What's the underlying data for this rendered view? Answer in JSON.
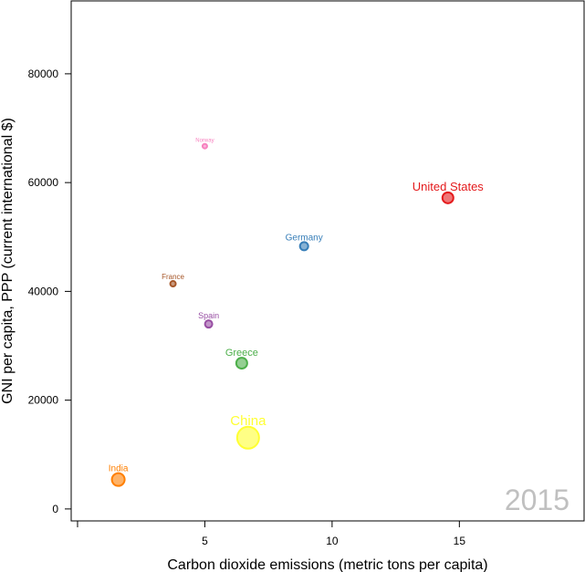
{
  "chart_data": {
    "type": "scatter",
    "title": "",
    "year_label": "2015",
    "xlabel": "Carbon dioxide emissions (metric tons per capita)",
    "ylabel": "GNI per capita, PPP (current international $)",
    "xlim": [
      -0.25,
      19.9
    ],
    "ylim": [
      -2200,
      93400
    ],
    "xticks": [
      0,
      5,
      10,
      15
    ],
    "xtick_labels": [
      "",
      "5",
      "10",
      "15"
    ],
    "yticks": [
      0,
      20000,
      40000,
      60000,
      80000
    ],
    "ytick_labels": [
      "0",
      "20000",
      "40000",
      "60000",
      "80000"
    ],
    "grid": false,
    "points": [
      {
        "label": "China",
        "x": 6.7,
        "y": 13100,
        "size": 12,
        "color": "#ffff33",
        "font": 15
      },
      {
        "label": "India",
        "x": 1.6,
        "y": 5400,
        "size": 7,
        "color": "#ff7f00",
        "font": 10
      },
      {
        "label": "United States",
        "x": 14.55,
        "y": 57200,
        "size": 6,
        "color": "#e41a1c",
        "font": 13
      },
      {
        "label": "Greece",
        "x": 6.45,
        "y": 26800,
        "size": 6,
        "color": "#4daf4a",
        "font": 11
      },
      {
        "label": "Germany",
        "x": 8.9,
        "y": 48300,
        "size": 4.5,
        "color": "#377eb8",
        "font": 10
      },
      {
        "label": "Spain",
        "x": 5.15,
        "y": 34000,
        "size": 4,
        "color": "#984ea3",
        "font": 9
      },
      {
        "label": "France",
        "x": 3.75,
        "y": 41400,
        "size": 3,
        "color": "#a65628",
        "font": 8
      },
      {
        "label": "Norway",
        "x": 5.0,
        "y": 66700,
        "size": 2.5,
        "color": "#f781bf",
        "font": 6
      }
    ]
  }
}
